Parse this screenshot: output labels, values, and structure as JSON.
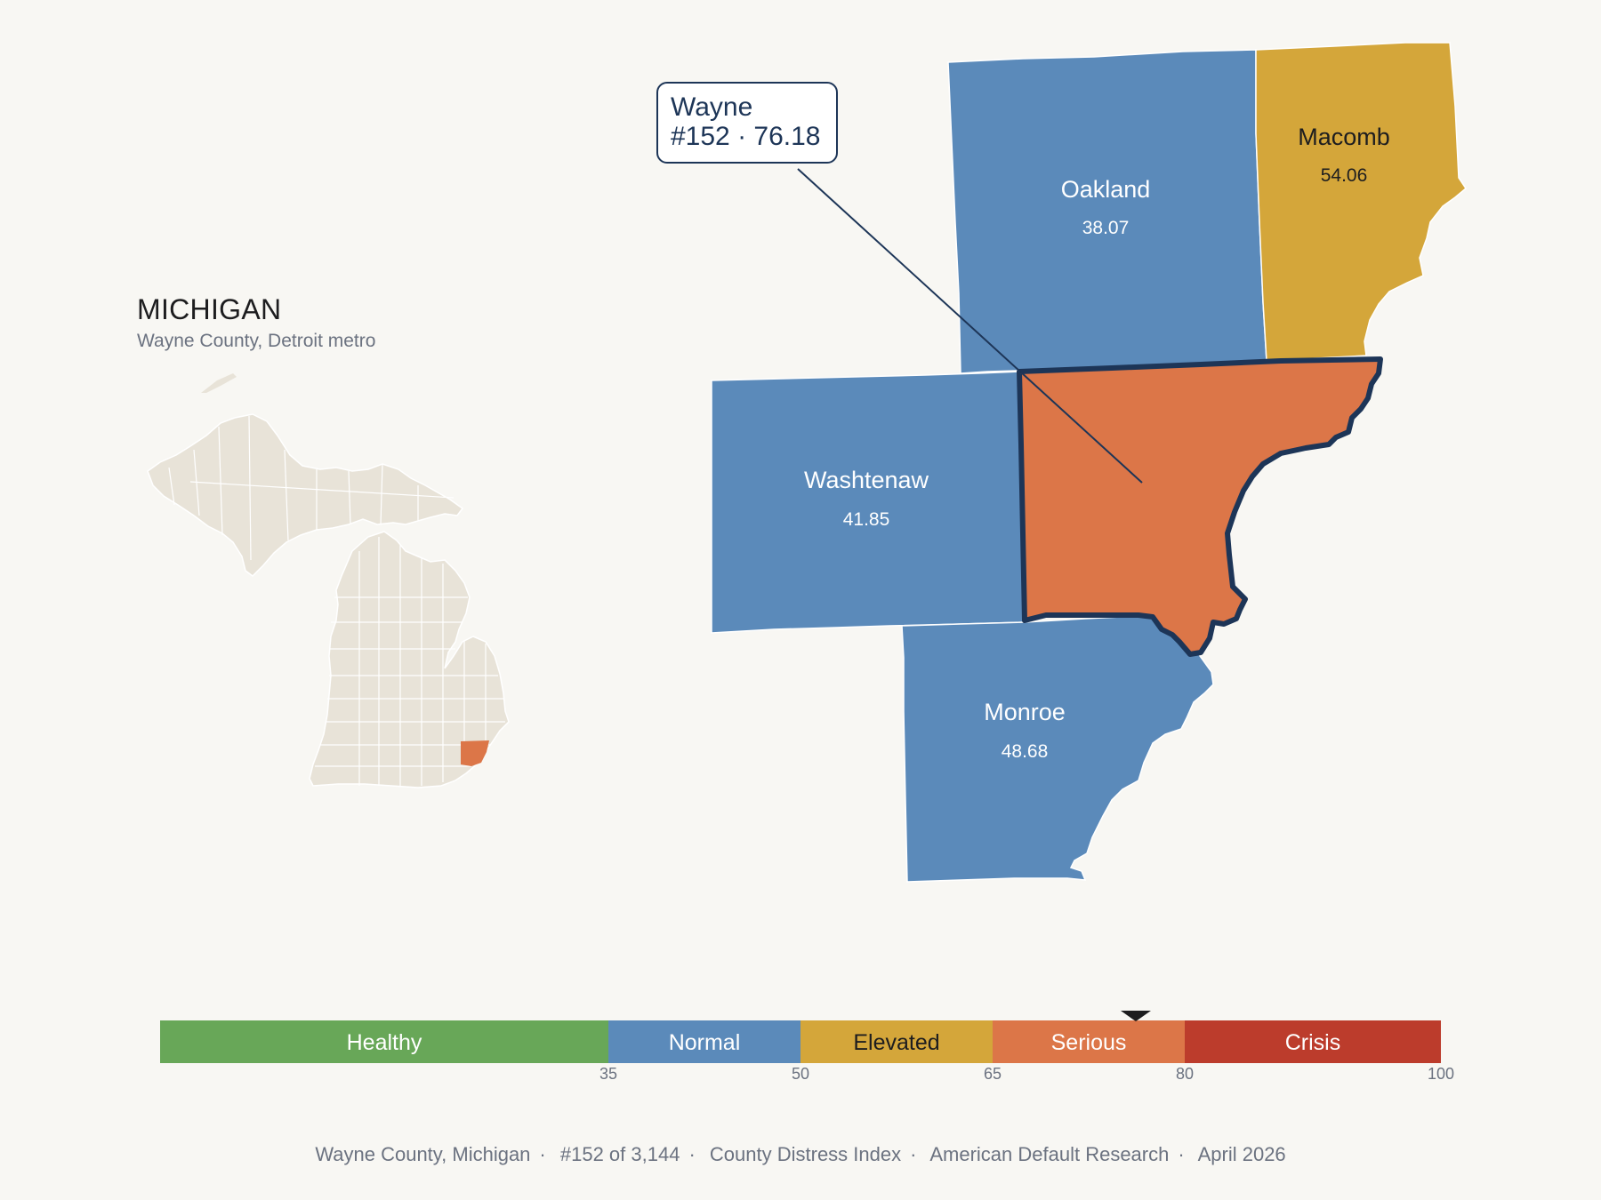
{
  "header": {
    "state_title": "MICHIGAN",
    "subtitle": "Wayne County, Detroit metro"
  },
  "callout": {
    "county": "Wayne",
    "detail": "#152 · 76.18"
  },
  "colors": {
    "background": "#f8f7f3",
    "normal": "#5b8aba",
    "elevated": "#d4a63a",
    "serious": "#dc7648",
    "healthy": "#68a758",
    "crisis": "#bc3c2c",
    "outline": "#1d3557",
    "inset_land": "#e8e3d8"
  },
  "counties": [
    {
      "id": "oakland",
      "name": "Oakland",
      "value": "38.07",
      "status": "normal"
    },
    {
      "id": "macomb",
      "name": "Macomb",
      "value": "54.06",
      "status": "elevated"
    },
    {
      "id": "washtenaw",
      "name": "Washtenaw",
      "value": "41.85",
      "status": "normal"
    },
    {
      "id": "wayne",
      "name": "Wayne",
      "value": "76.18",
      "status": "serious",
      "highlighted": true
    },
    {
      "id": "monroe",
      "name": "Monroe",
      "value": "48.68",
      "status": "normal"
    }
  ],
  "scale": {
    "min": 0,
    "max": 100,
    "marker_value": 76.18,
    "bands": [
      {
        "label": "Healthy",
        "from": 0,
        "to": 35,
        "color": "#68a758",
        "text_color": "#ffffff"
      },
      {
        "label": "Normal",
        "from": 35,
        "to": 50,
        "color": "#5b8aba",
        "text_color": "#ffffff"
      },
      {
        "label": "Elevated",
        "from": 50,
        "to": 65,
        "color": "#d4a63a",
        "text_color": "#1d1d1f"
      },
      {
        "label": "Serious",
        "from": 65,
        "to": 80,
        "color": "#dc7648",
        "text_color": "#ffffff"
      },
      {
        "label": "Crisis",
        "from": 80,
        "to": 100,
        "color": "#bc3c2c",
        "text_color": "#ffffff"
      }
    ],
    "ticks": [
      "35",
      "50",
      "65",
      "80",
      "100"
    ]
  },
  "footer": {
    "items": [
      "Wayne County, Michigan",
      "#152 of 3,144",
      "County Distress Index",
      "American Default Research",
      "April 2026"
    ]
  }
}
